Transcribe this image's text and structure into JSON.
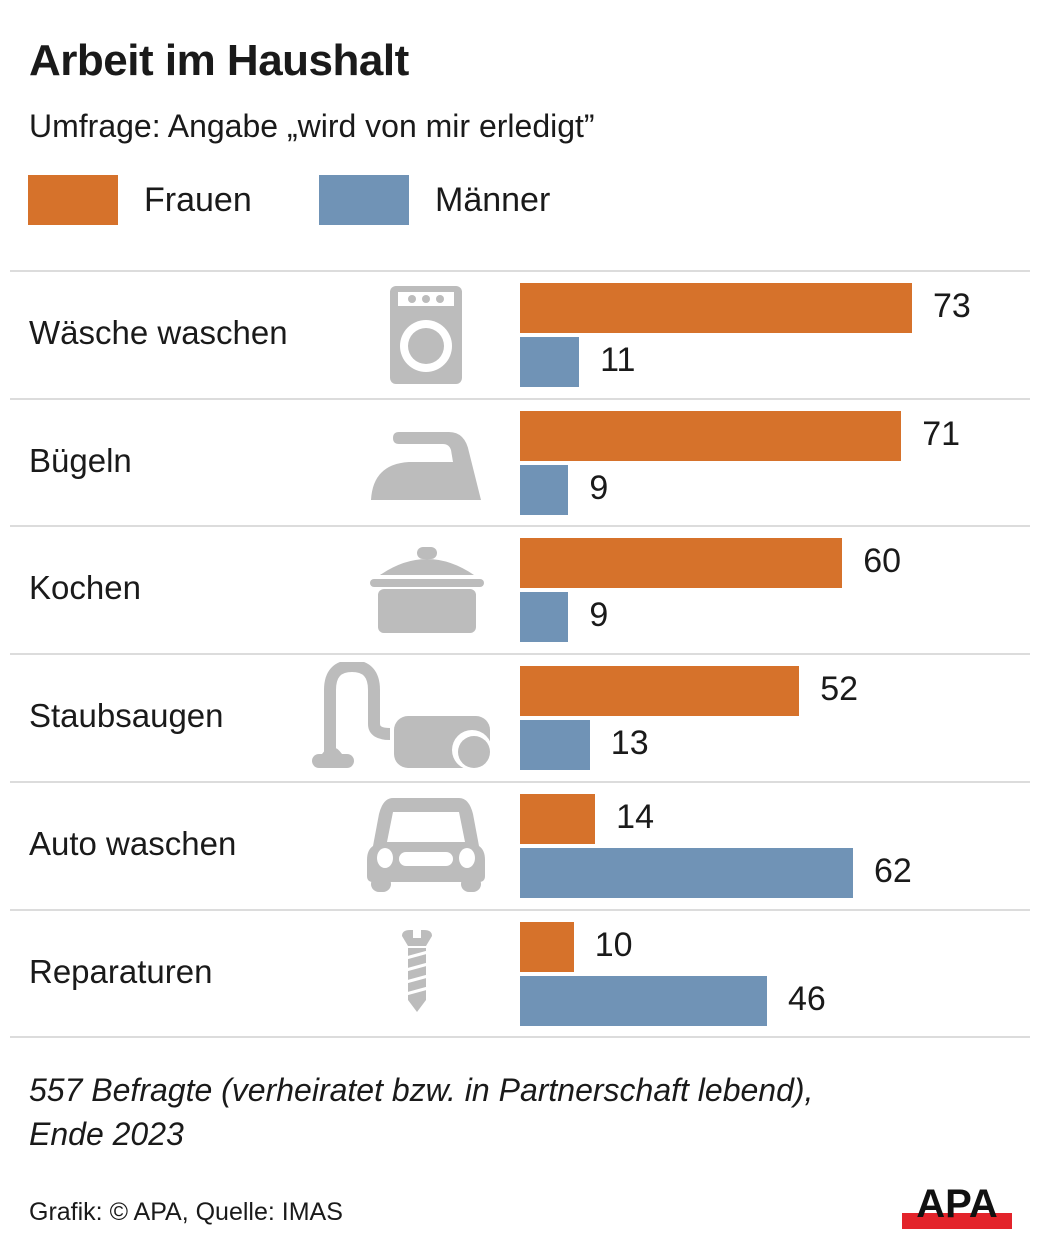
{
  "title": "Arbeit im Haushalt",
  "subtitle": "Umfrage: Angabe „wird von mir erledigt”",
  "colors": {
    "frauen": "#d6722b",
    "maenner": "#7093b6",
    "icon": "#bcbcbc"
  },
  "legend": [
    {
      "label": "Frauen",
      "color": "#d6722b"
    },
    {
      "label": "Männer",
      "color": "#7093b6"
    }
  ],
  "chart_data": {
    "type": "bar",
    "orientation": "horizontal",
    "title": "Arbeit im Haushalt",
    "subtitle": "Umfrage: Angabe „wird von mir erledigt”",
    "xlabel": "",
    "ylabel": "",
    "unit": "%",
    "xlim": [
      0,
      80
    ],
    "grid": false,
    "legend_position": "top-left",
    "categories": [
      "Wäsche waschen",
      "Bügeln",
      "Kochen",
      "Staubsaugen",
      "Auto waschen",
      "Reparaturen"
    ],
    "icons": [
      "washing-machine-icon",
      "iron-icon",
      "cooking-pot-icon",
      "vacuum-cleaner-icon",
      "car-icon",
      "screw-icon"
    ],
    "series": [
      {
        "name": "Frauen",
        "values": [
          73,
          71,
          60,
          52,
          14,
          10
        ]
      },
      {
        "name": "Männer",
        "values": [
          11,
          9,
          9,
          13,
          62,
          46
        ]
      }
    ]
  },
  "footnote": "557 Befragte (verheiratet bzw. in Partnerschaft lebend), Ende 2023",
  "footnote_lines": [
    "557 Befragte (verheiratet bzw. in Partnerschaft lebend),",
    "Ende 2023"
  ],
  "source": "Grafik: © APA, Quelle: IMAS",
  "logo": {
    "text": "APA"
  }
}
